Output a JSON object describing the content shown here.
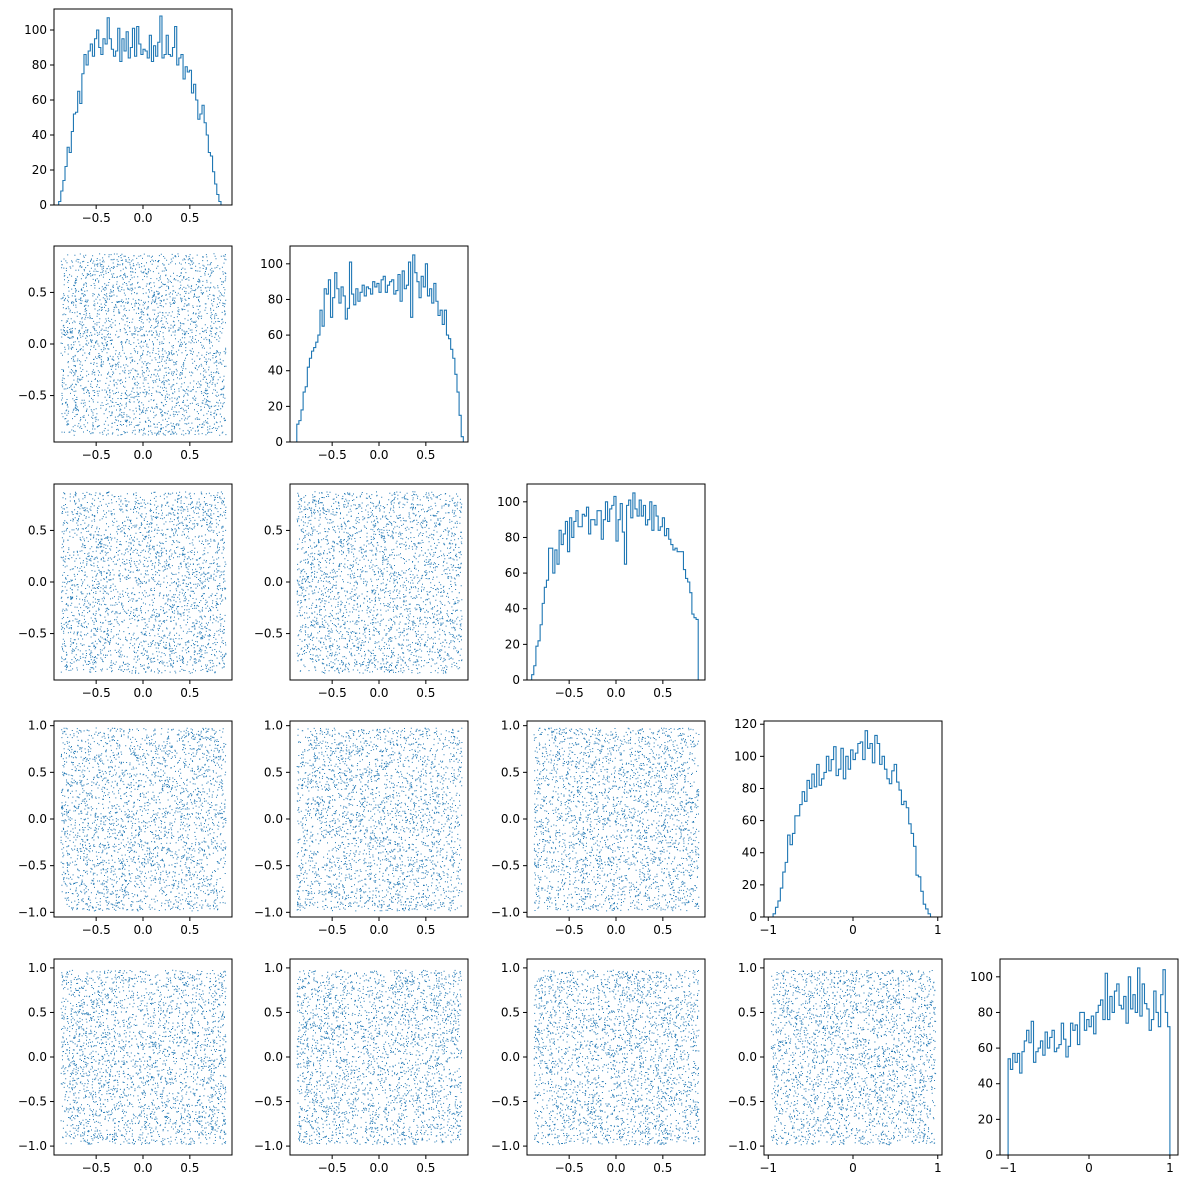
{
  "figure": {
    "type": "corner-plot",
    "grid": "5x5 lower triangle",
    "n_variables": 5
  },
  "colors": {
    "series": "#1f77b4",
    "axes": "#000000",
    "background": "#ffffff"
  },
  "variables": [
    {
      "range": [
        -0.95,
        0.95
      ],
      "ticks": [
        -0.5,
        0.0,
        0.5
      ],
      "tick_labels": [
        "−0.5",
        "0.0",
        "0.5"
      ]
    },
    {
      "range": [
        -0.95,
        0.95
      ],
      "ticks": [
        -0.5,
        0.0,
        0.5
      ],
      "tick_labels": [
        "−0.5",
        "0.0",
        "0.5"
      ]
    },
    {
      "range": [
        -0.95,
        0.95
      ],
      "ticks": [
        -0.5,
        0.0,
        0.5
      ],
      "tick_labels": [
        "−0.5",
        "0.0",
        "0.5"
      ]
    },
    {
      "range": [
        -1.05,
        1.05
      ],
      "ticks": [
        -1,
        0,
        1
      ],
      "tick_labels": [
        "−1",
        "0",
        "1"
      ],
      "scatter_y_ticks": [
        -1.0,
        -0.5,
        0.0,
        0.5,
        1.0
      ],
      "scatter_y_tick_labels": [
        "−1.0",
        "−0.5",
        "0.0",
        "0.5",
        "1.0"
      ]
    },
    {
      "range": [
        -1.1,
        1.1
      ],
      "ticks": [
        -1,
        0,
        1
      ],
      "tick_labels": [
        "−1",
        "0",
        "1"
      ],
      "scatter_y_ticks": [
        -1.0,
        -0.5,
        0.0,
        0.5,
        1.0
      ],
      "scatter_y_tick_labels": [
        "−1.0",
        "−0.5",
        "0.0",
        "0.5",
        "1.0"
      ]
    }
  ],
  "chart_data": [
    {
      "type": "histogram",
      "variable": 1,
      "x_range": [
        -0.95,
        0.95
      ],
      "ylim": [
        0,
        112
      ],
      "y_ticks": [
        0,
        20,
        40,
        60,
        80,
        100
      ],
      "bin_range": [
        -0.9,
        0.9
      ],
      "counts": [
        2,
        8,
        14,
        22,
        33,
        30,
        42,
        52,
        53,
        65,
        58,
        75,
        86,
        80,
        88,
        92,
        85,
        95,
        100,
        90,
        86,
        95,
        92,
        107,
        95,
        89,
        85,
        88,
        101,
        82,
        95,
        88,
        99,
        84,
        90,
        101,
        85,
        102,
        92,
        86,
        89,
        88,
        84,
        97,
        82,
        91,
        85,
        93,
        108,
        84,
        86,
        97,
        86,
        85,
        90,
        102,
        80,
        84,
        86,
        72,
        79,
        76,
        77,
        64,
        69,
        60,
        49,
        52,
        57,
        47,
        40,
        30,
        28,
        19,
        12,
        6,
        2,
        0,
        0,
        0
      ]
    },
    {
      "type": "scatter",
      "x_variable": 1,
      "y_variable": 2,
      "n_points": 2800,
      "x_range": [
        -0.95,
        0.95
      ],
      "y_range": [
        -0.95,
        0.95
      ],
      "y_ticks": [
        -0.5,
        0.0,
        0.5
      ],
      "y_tick_labels": [
        "−0.5",
        "0.0",
        "0.5"
      ]
    },
    {
      "type": "histogram",
      "variable": 2,
      "x_range": [
        -0.95,
        0.95
      ],
      "ylim": [
        0,
        110
      ],
      "y_ticks": [
        0,
        20,
        40,
        60,
        80,
        100
      ],
      "bin_range": [
        -0.9,
        0.9
      ],
      "counts": [
        0,
        10,
        12,
        18,
        28,
        31,
        42,
        47,
        51,
        53,
        56,
        60,
        74,
        65,
        86,
        83,
        91,
        70,
        81,
        95,
        86,
        78,
        87,
        82,
        69,
        75,
        101,
        83,
        77,
        86,
        79,
        84,
        88,
        82,
        87,
        86,
        83,
        90,
        87,
        89,
        84,
        91,
        93,
        84,
        88,
        90,
        91,
        83,
        85,
        94,
        79,
        96,
        86,
        88,
        101,
        70,
        105,
        95,
        90,
        81,
        93,
        87,
        100,
        82,
        86,
        78,
        89,
        79,
        71,
        74,
        66,
        74,
        60,
        58,
        52,
        47,
        38,
        28,
        15,
        3
      ]
    },
    {
      "type": "scatter",
      "x_variable": 1,
      "y_variable": 3,
      "n_points": 2800,
      "x_range": [
        -0.95,
        0.95
      ],
      "y_range": [
        -0.95,
        0.95
      ],
      "y_ticks": [
        -0.5,
        0.0,
        0.5
      ],
      "y_tick_labels": [
        "−0.5",
        "0.0",
        "0.5"
      ]
    },
    {
      "type": "scatter",
      "x_variable": 2,
      "y_variable": 3,
      "n_points": 2800,
      "x_range": [
        -0.95,
        0.95
      ],
      "y_range": [
        -0.95,
        0.95
      ],
      "y_ticks": [
        -0.5,
        0.0,
        0.5
      ],
      "y_tick_labels": [
        "−0.5",
        "0.0",
        "0.5"
      ]
    },
    {
      "type": "histogram",
      "variable": 3,
      "x_range": [
        -0.95,
        0.95
      ],
      "ylim": [
        0,
        110
      ],
      "y_ticks": [
        0,
        20,
        40,
        60,
        80,
        100
      ],
      "bin_range": [
        -0.9,
        0.9
      ],
      "counts": [
        3,
        8,
        19,
        22,
        31,
        43,
        52,
        56,
        74,
        74,
        60,
        73,
        65,
        84,
        76,
        82,
        89,
        72,
        91,
        80,
        89,
        95,
        86,
        86,
        93,
        92,
        97,
        82,
        90,
        90,
        87,
        95,
        95,
        79,
        90,
        100,
        89,
        96,
        98,
        103,
        78,
        90,
        99,
        83,
        65,
        98,
        101,
        91,
        105,
        96,
        92,
        101,
        92,
        98,
        87,
        90,
        100,
        84,
        98,
        92,
        84,
        86,
        91,
        81,
        85,
        79,
        76,
        73,
        74,
        72,
        72,
        72,
        62,
        57,
        55,
        49,
        37,
        35,
        34,
        0
      ]
    },
    {
      "type": "scatter",
      "x_variable": 1,
      "y_variable": 4,
      "n_points": 2800,
      "x_range": [
        -0.95,
        0.95
      ],
      "y_range": [
        -1.05,
        1.05
      ]
    },
    {
      "type": "scatter",
      "x_variable": 2,
      "y_variable": 4,
      "n_points": 2800,
      "x_range": [
        -0.95,
        0.95
      ],
      "y_range": [
        -1.05,
        1.05
      ]
    },
    {
      "type": "scatter",
      "x_variable": 3,
      "y_variable": 4,
      "n_points": 2800,
      "x_range": [
        -0.95,
        0.95
      ],
      "y_range": [
        -1.05,
        1.05
      ]
    },
    {
      "type": "histogram",
      "variable": 4,
      "x_range": [
        -1.05,
        1.05
      ],
      "ylim": [
        0,
        122
      ],
      "y_ticks": [
        0,
        20,
        40,
        60,
        80,
        100,
        120
      ],
      "bin_range": [
        -1.0,
        1.0
      ],
      "counts": [
        0,
        0,
        2,
        6,
        10,
        18,
        28,
        34,
        51,
        45,
        52,
        63,
        63,
        70,
        78,
        72,
        85,
        80,
        89,
        81,
        95,
        82,
        86,
        90,
        100,
        91,
        98,
        106,
        88,
        92,
        105,
        86,
        100,
        92,
        104,
        98,
        102,
        108,
        109,
        98,
        116,
        105,
        108,
        96,
        113,
        108,
        95,
        100,
        92,
        86,
        83,
        91,
        95,
        84,
        79,
        70,
        72,
        68,
        58,
        52,
        44,
        26,
        25,
        16,
        8,
        5,
        2,
        0,
        0,
        0
      ]
    },
    {
      "type": "scatter",
      "x_variable": 1,
      "y_variable": 5,
      "n_points": 2800,
      "x_range": [
        -0.95,
        0.95
      ],
      "y_range": [
        -1.1,
        1.1
      ]
    },
    {
      "type": "scatter",
      "x_variable": 2,
      "y_variable": 5,
      "n_points": 2800,
      "x_range": [
        -0.95,
        0.95
      ],
      "y_range": [
        -1.1,
        1.1
      ]
    },
    {
      "type": "scatter",
      "x_variable": 3,
      "y_variable": 5,
      "n_points": 2800,
      "x_range": [
        -0.95,
        0.95
      ],
      "y_range": [
        -1.1,
        1.1
      ]
    },
    {
      "type": "scatter",
      "x_variable": 4,
      "y_variable": 5,
      "n_points": 2800,
      "x_range": [
        -1.05,
        1.05
      ],
      "y_range": [
        -1.1,
        1.1
      ]
    },
    {
      "type": "histogram",
      "variable": 5,
      "x_range": [
        -1.1,
        1.1
      ],
      "ylim": [
        0,
        110
      ],
      "y_ticks": [
        0,
        20,
        40,
        60,
        80,
        100
      ],
      "bin_range": [
        -1.0,
        1.0
      ],
      "counts": [
        54,
        48,
        57,
        52,
        57,
        46,
        58,
        64,
        70,
        63,
        75,
        52,
        58,
        60,
        64,
        56,
        69,
        60,
        66,
        70,
        58,
        60,
        62,
        74,
        65,
        55,
        61,
        74,
        70,
        73,
        62,
        80,
        80,
        70,
        76,
        72,
        78,
        68,
        80,
        84,
        87,
        76,
        102,
        76,
        89,
        80,
        92,
        96,
        84,
        82,
        89,
        74,
        100,
        82,
        90,
        80,
        105,
        78,
        96,
        85,
        82,
        70,
        76,
        92,
        80,
        72,
        90,
        104,
        80,
        72
      ]
    }
  ]
}
